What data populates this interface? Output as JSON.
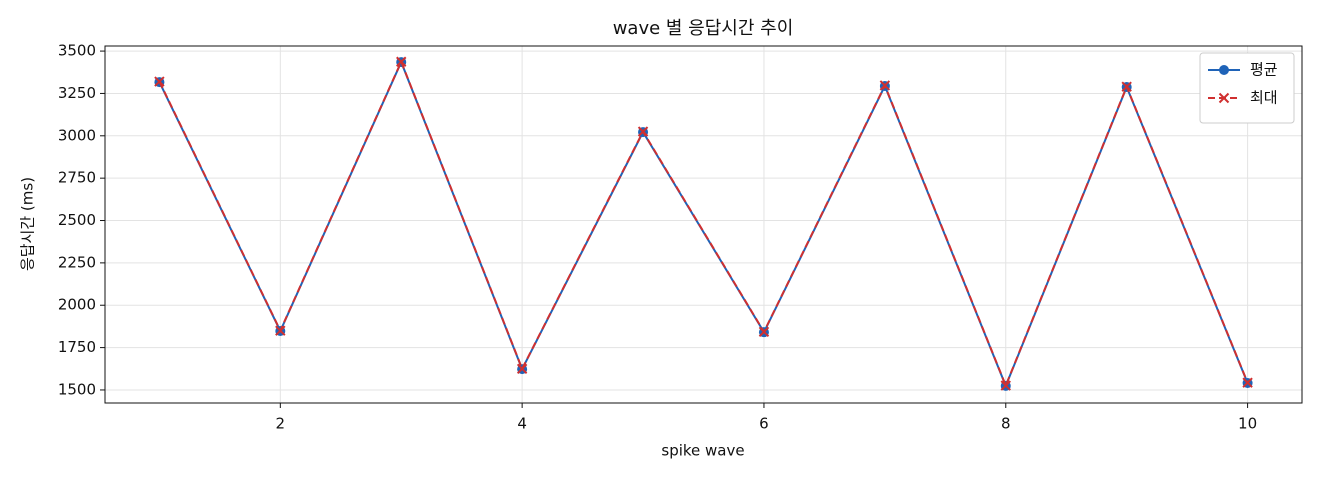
{
  "chart_data": {
    "type": "line",
    "title": "wave 별 응답시간 추이",
    "x_label": "spike wave",
    "y_label": "응답시간 (ms)",
    "x": [
      1,
      2,
      3,
      4,
      5,
      6,
      7,
      8,
      9,
      10
    ],
    "series": [
      {
        "name": "평균",
        "color": "#1f63b8",
        "marker": "circle",
        "dash": false,
        "values": [
          3317,
          1848,
          3435,
          1623,
          3022,
          1841,
          3294,
          1524,
          3288,
          1541
        ]
      },
      {
        "name": "최대",
        "color": "#d03030",
        "marker": "x",
        "dash": true,
        "values": [
          3320,
          1850,
          3437,
          1625,
          3025,
          1843,
          3297,
          1526,
          3290,
          1543
        ]
      }
    ],
    "xlim": [
      0.55,
      10.45
    ],
    "xticks": [
      2,
      4,
      6,
      8,
      10
    ],
    "ylim": [
      1423,
      3530
    ],
    "yticks": [
      1500,
      1750,
      2000,
      2250,
      2500,
      2750,
      3000,
      3250,
      3500
    ],
    "grid": true,
    "legend": "upper right"
  }
}
